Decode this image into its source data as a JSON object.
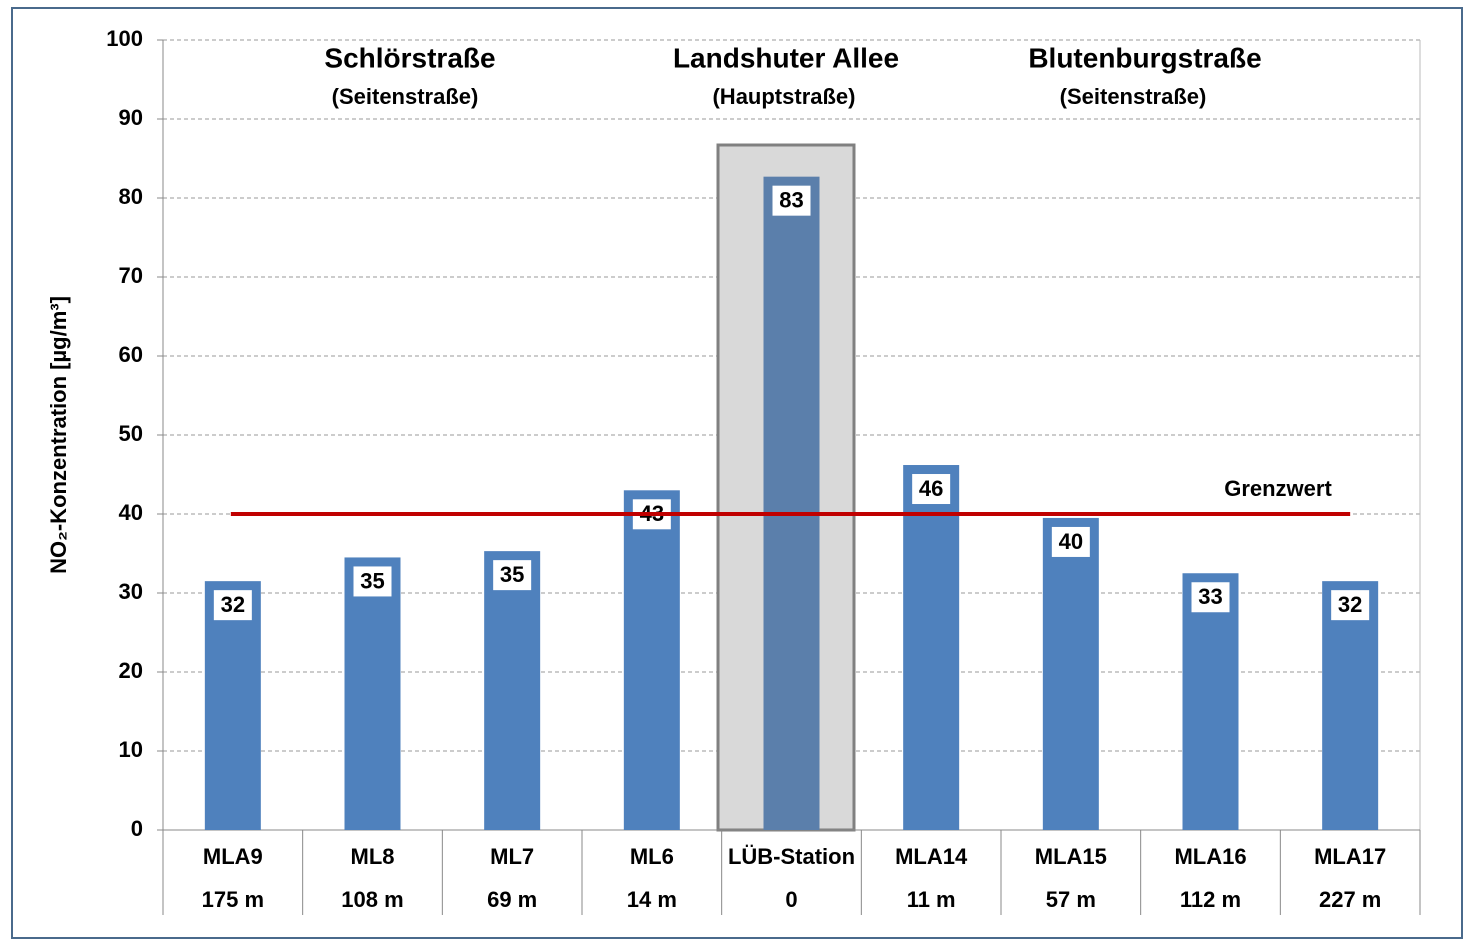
{
  "chart_data": {
    "type": "bar",
    "y_label": "NO₂-Konzentration [µg/m³]",
    "categories": [
      "MLA9",
      "ML8",
      "ML7",
      "ML6",
      "LÜB-Station",
      "MLA14",
      "MLA15",
      "MLA16",
      "MLA17"
    ],
    "distances": [
      "175 m",
      "108 m",
      "69 m",
      "14 m",
      "0",
      "11 m",
      "57 m",
      "112 m",
      "227 m"
    ],
    "values": [
      31.5,
      34.5,
      35.3,
      43,
      82.7,
      46.2,
      39.5,
      32.5,
      31.5
    ],
    "value_labels": [
      "32",
      "35",
      "35",
      "43",
      "83",
      "46",
      "40",
      "33",
      "32"
    ],
    "colors": [
      "#4f81bd",
      "#4f81bd",
      "#4f81bd",
      "#4f81bd",
      "#5b7fab",
      "#4f81bd",
      "#4f81bd",
      "#4f81bd",
      "#4f81bd"
    ],
    "ylim": [
      0,
      100
    ],
    "yticks": [
      0,
      10,
      20,
      30,
      40,
      50,
      60,
      70,
      80,
      90,
      100
    ],
    "grid": true,
    "threshold": {
      "value": 40,
      "label": "Grenzwert",
      "color": "#c00000"
    },
    "groups": [
      {
        "title": "Schlörstraße",
        "subtitle": "(Seitenstraße)"
      },
      {
        "title": "Landshuter Allee",
        "subtitle": "(Hauptstraße)"
      },
      {
        "title": "Blutenburgstraße",
        "subtitle": "(Seitenstraße)"
      }
    ]
  }
}
